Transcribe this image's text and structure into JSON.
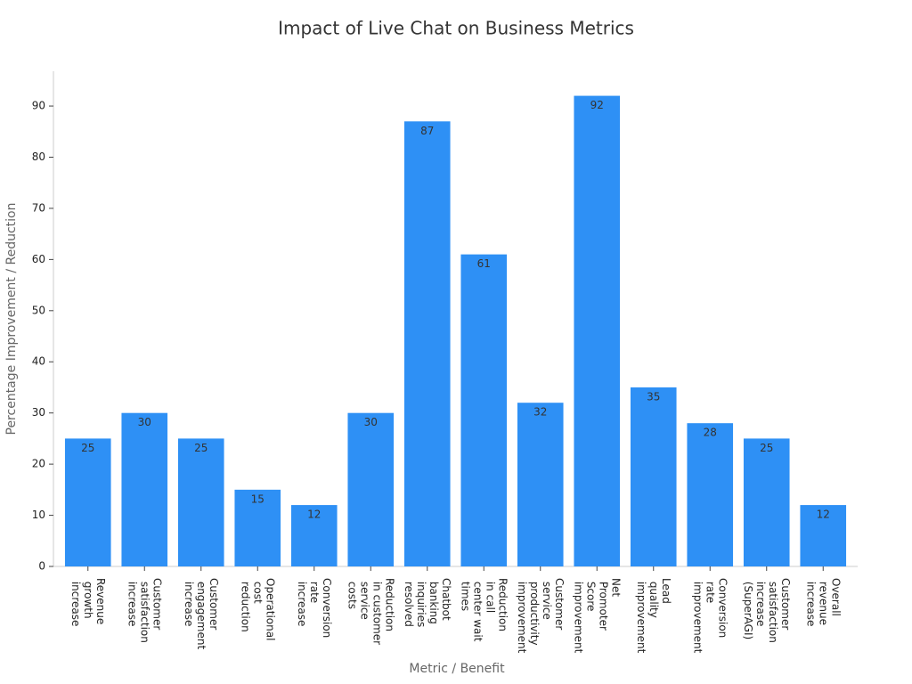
{
  "chart_data": {
    "type": "bar",
    "title": "Impact of Live Chat on Business Metrics",
    "x_label": "Metric / Benefit",
    "y_label": "Percentage Improvement / Reduction",
    "categories": [
      "Revenue growth increase",
      "Customer satisfaction increase",
      "Customer engagement increase",
      "Operational cost reduction",
      "Conversion rate increase",
      "Reduction in customer service costs",
      "Chatbot banking inquiries resolved",
      "Reduction in call center wait times",
      "Customer service productivity improvement",
      "Net Promoter Score improvement",
      "Lead quality improvement",
      "Conversion rate improvement",
      "Customer satisfaction increase (SuperAGI)",
      "Overall revenue increase"
    ],
    "values": [
      25,
      30,
      25,
      15,
      12,
      30,
      87,
      61,
      32,
      92,
      35,
      28,
      25,
      12
    ],
    "color": "#2e90f5",
    "ylim": [
      0,
      96.8
    ],
    "yticks": [
      0,
      10,
      20,
      30,
      40,
      50,
      60,
      70,
      80,
      90
    ],
    "grid": false
  }
}
